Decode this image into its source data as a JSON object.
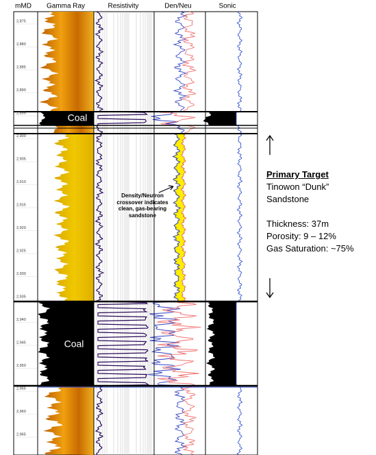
{
  "headers": [
    "mMD",
    "Gamma Ray",
    "Resistivity",
    "Den/Neu",
    "Sonic"
  ],
  "depth_labels": [
    "2,875",
    "2,880",
    "2,885",
    "2,890",
    "2,895",
    "2,900",
    "2,905",
    "2,910",
    "2,915",
    "2,920",
    "2,925",
    "2,930",
    "2,935",
    "2,940",
    "2,945",
    "2,950",
    "2,955",
    "2,960",
    "2,965"
  ],
  "coal_labels": [
    "Coal",
    "Coal"
  ],
  "callout": [
    "Density/Neutron",
    "crossover indicates",
    "clean, gas-bearing",
    "sandstone"
  ],
  "target": {
    "title": "Primary Target",
    "lines": [
      "Tinowon “Dunk”",
      "Sandstone",
      "Thickness: 37m",
      "Porosity: 9 – 12%",
      "Gas Saturation: ~75%"
    ]
  }
}
